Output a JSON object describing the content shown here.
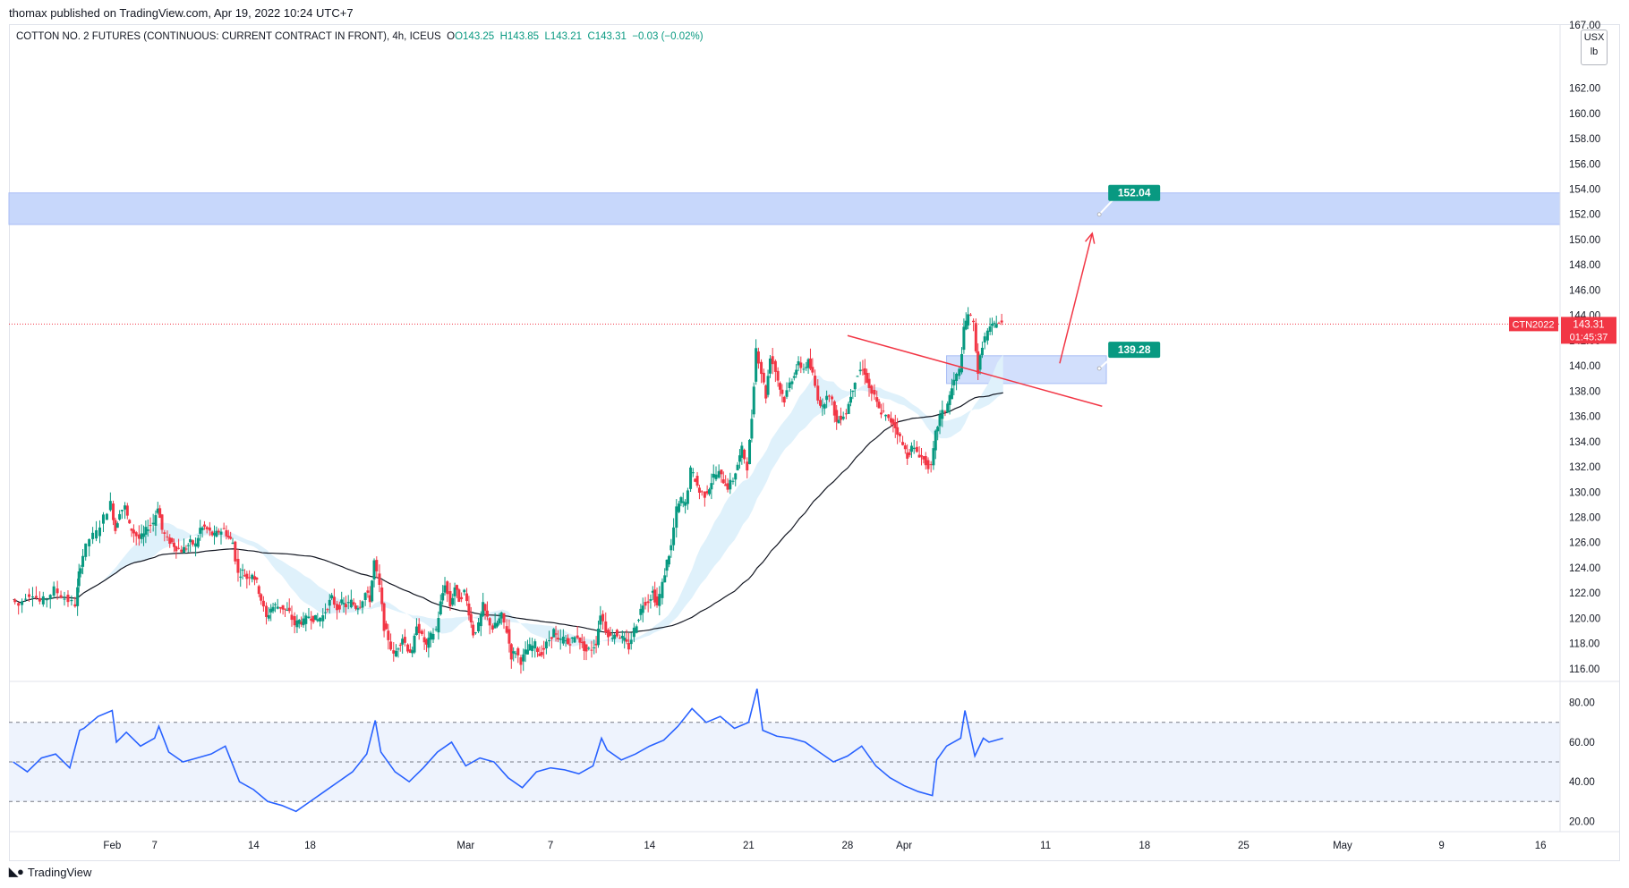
{
  "published_by": "thomax published on TradingView.com, Apr 19, 2022 10:24 UTC+7",
  "legend": {
    "symbol": "COTTON NO. 2 FUTURES (CONTINUOUS: CURRENT CONTRACT IN FRONT), 4h, ICEUS",
    "open": "O143.25",
    "high": "H143.85",
    "low": "L143.21",
    "close": "C143.31",
    "change": "−0.03 (−0.02%)"
  },
  "unit_box": {
    "currency": "USX",
    "unit": "lb"
  },
  "brand": "TradingView",
  "colors": {
    "up": "#089981",
    "down": "#f23645",
    "trendline": "#f23645",
    "zone_fill": "#c7d7fb",
    "ribbon": "#dff1fb",
    "ma": "#131722",
    "rsi_line": "#2962ff",
    "rsi_band": "#eef3fd",
    "price_label": "#f23645",
    "target_label": "#089981"
  },
  "chart_data": [
    {
      "type": "candlestick",
      "interval": "4h",
      "ylim": [
        115,
        167
      ],
      "y_ticks": [
        "116.00",
        "118.00",
        "120.00",
        "122.00",
        "124.00",
        "126.00",
        "128.00",
        "130.00",
        "132.00",
        "134.00",
        "136.00",
        "138.00",
        "140.00",
        "142.00",
        "144.00",
        "146.00",
        "148.00",
        "150.00",
        "152.00",
        "154.00",
        "156.00",
        "158.00",
        "160.00",
        "162.00",
        "167.00"
      ],
      "x_ticks": [
        {
          "label": "Feb",
          "day": 4
        },
        {
          "label": "7",
          "day": 7
        },
        {
          "label": "14",
          "day": 14
        },
        {
          "label": "18",
          "day": 18
        },
        {
          "label": "Mar",
          "day": 29
        },
        {
          "label": "7",
          "day": 35
        },
        {
          "label": "14",
          "day": 42
        },
        {
          "label": "21",
          "day": 49
        },
        {
          "label": "28",
          "day": 56
        },
        {
          "label": "Apr",
          "day": 60
        },
        {
          "label": "11",
          "day": 70
        },
        {
          "label": "18",
          "day": 77
        },
        {
          "label": "25",
          "day": 84
        },
        {
          "label": "May",
          "day": 91
        },
        {
          "label": "9",
          "day": 98
        },
        {
          "label": "16",
          "day": 105
        }
      ],
      "closes": [
        [
          -3,
          121.5
        ],
        [
          -2.5,
          121.0
        ],
        [
          -2,
          121.8
        ],
        [
          -1.5,
          122.0
        ],
        [
          -1,
          121.3
        ],
        [
          -0.5,
          121.6
        ],
        [
          0,
          122.3
        ],
        [
          0.5,
          121.8
        ],
        [
          1,
          121.4
        ],
        [
          1.5,
          121.1
        ],
        [
          1.7,
          123.5
        ],
        [
          2,
          125.0
        ],
        [
          2.5,
          126.3
        ],
        [
          3,
          126.8
        ],
        [
          3.5,
          128.0
        ],
        [
          4,
          129.1
        ],
        [
          4.3,
          127.0
        ],
        [
          4.6,
          128.5
        ],
        [
          5,
          128.8
        ],
        [
          5.3,
          127.3
        ],
        [
          5.6,
          126.8
        ],
        [
          6,
          126.3
        ],
        [
          6.3,
          126.6
        ],
        [
          6.6,
          127.3
        ],
        [
          7,
          127.6
        ],
        [
          7.3,
          128.9
        ],
        [
          7.6,
          127.0
        ],
        [
          8,
          126.2
        ],
        [
          8.3,
          126.0
        ],
        [
          8.6,
          125.6
        ],
        [
          9,
          125.4
        ],
        [
          9.3,
          125.6
        ],
        [
          9.6,
          126.0
        ],
        [
          10,
          125.8
        ],
        [
          10.3,
          127.1
        ],
        [
          10.6,
          127.2
        ],
        [
          11,
          126.8
        ],
        [
          11.3,
          126.5
        ],
        [
          11.6,
          126.9
        ],
        [
          12,
          127.0
        ],
        [
          12.3,
          126.4
        ],
        [
          12.6,
          126.0
        ],
        [
          13,
          123.5
        ],
        [
          13.3,
          123.7
        ],
        [
          13.6,
          123.2
        ],
        [
          14,
          123.6
        ],
        [
          14.3,
          122.8
        ],
        [
          14.6,
          121.5
        ],
        [
          15,
          120.0
        ],
        [
          15.3,
          120.8
        ],
        [
          15.6,
          121.0
        ],
        [
          16,
          120.9
        ],
        [
          16.3,
          120.7
        ],
        [
          16.6,
          120.4
        ],
        [
          17,
          119.5
        ],
        [
          17.3,
          119.8
        ],
        [
          17.6,
          119.7
        ],
        [
          18,
          120.2
        ],
        [
          18.3,
          120.0
        ],
        [
          18.6,
          119.9
        ],
        [
          19,
          120.2
        ],
        [
          19.3,
          121.0
        ],
        [
          19.6,
          121.6
        ],
        [
          20,
          120.8
        ],
        [
          20.3,
          121.2
        ],
        [
          20.6,
          121.0
        ],
        [
          21,
          121.3
        ],
        [
          21.3,
          120.9
        ],
        [
          21.6,
          121.1
        ],
        [
          22,
          122.0
        ],
        [
          22.3,
          121.5
        ],
        [
          22.6,
          124.5
        ],
        [
          23,
          122.5
        ],
        [
          23.3,
          119.3
        ],
        [
          23.6,
          118.4
        ],
        [
          24,
          117.0
        ],
        [
          24.3,
          117.8
        ],
        [
          24.6,
          118.5
        ],
        [
          25,
          117.6
        ],
        [
          25.3,
          117.2
        ],
        [
          25.6,
          119.6
        ],
        [
          26,
          118.5
        ],
        [
          26.3,
          117.8
        ],
        [
          26.6,
          118.6
        ],
        [
          27,
          119.1
        ],
        [
          27.3,
          121.2
        ],
        [
          27.6,
          122.8
        ],
        [
          28,
          121.0
        ],
        [
          28.3,
          122.5
        ],
        [
          28.6,
          121.5
        ],
        [
          29,
          122.1
        ],
        [
          29.3,
          120.5
        ],
        [
          29.6,
          118.8
        ],
        [
          30,
          119.4
        ],
        [
          30.3,
          121.0
        ],
        [
          30.6,
          120.0
        ],
        [
          31,
          119.2
        ],
        [
          31.3,
          119.6
        ],
        [
          31.6,
          120.2
        ],
        [
          32,
          119.0
        ],
        [
          32.3,
          117.0
        ],
        [
          32.6,
          117.4
        ],
        [
          33,
          116.6
        ],
        [
          33.3,
          117.3
        ],
        [
          33.6,
          117.7
        ],
        [
          34,
          117.9
        ],
        [
          34.3,
          117.1
        ],
        [
          34.6,
          117.6
        ],
        [
          35,
          118.3
        ],
        [
          35.3,
          119.0
        ],
        [
          35.6,
          118.1
        ],
        [
          36,
          118.4
        ],
        [
          36.3,
          118.0
        ],
        [
          36.6,
          118.3
        ],
        [
          37,
          118.6
        ],
        [
          37.3,
          117.9
        ],
        [
          37.6,
          117.4
        ],
        [
          38,
          117.6
        ],
        [
          38.3,
          118.1
        ],
        [
          38.6,
          120.4
        ],
        [
          39,
          119.1
        ],
        [
          39.3,
          118.5
        ],
        [
          39.6,
          118.8
        ],
        [
          40,
          118.6
        ],
        [
          40.3,
          118.2
        ],
        [
          40.6,
          117.7
        ],
        [
          41,
          119.1
        ],
        [
          41.3,
          120.1
        ],
        [
          41.6,
          121.2
        ],
        [
          42,
          121.4
        ],
        [
          42.3,
          122.1
        ],
        [
          42.6,
          121.0
        ],
        [
          43,
          122.7
        ],
        [
          43.3,
          124.5
        ],
        [
          43.6,
          125.7
        ],
        [
          44,
          128.6
        ],
        [
          44.3,
          129.4
        ],
        [
          44.6,
          129.0
        ],
        [
          45,
          131.7
        ],
        [
          45.3,
          131.0
        ],
        [
          45.6,
          130.0
        ],
        [
          46,
          129.8
        ],
        [
          46.3,
          130.4
        ],
        [
          46.6,
          131.3
        ],
        [
          47,
          131.5
        ],
        [
          47.3,
          130.9
        ],
        [
          47.6,
          130.4
        ],
        [
          48,
          131.0
        ],
        [
          48.3,
          132.2
        ],
        [
          48.6,
          133.4
        ],
        [
          49,
          132.0
        ],
        [
          49.3,
          135.9
        ],
        [
          49.6,
          141.4
        ],
        [
          50,
          139.5
        ],
        [
          50.3,
          137.6
        ],
        [
          50.6,
          140.8
        ],
        [
          51,
          139.6
        ],
        [
          51.3,
          138.2
        ],
        [
          51.6,
          137.3
        ],
        [
          52,
          138.6
        ],
        [
          52.3,
          139.4
        ],
        [
          52.6,
          140.1
        ],
        [
          53,
          139.8
        ],
        [
          53.3,
          140.3
        ],
        [
          53.6,
          139.3
        ],
        [
          54,
          137.5
        ],
        [
          54.3,
          136.6
        ],
        [
          54.6,
          137.9
        ],
        [
          55,
          137.1
        ],
        [
          55.3,
          135.5
        ],
        [
          55.6,
          136.0
        ],
        [
          56,
          136.3
        ],
        [
          56.3,
          137.7
        ],
        [
          56.6,
          138.9
        ],
        [
          57,
          139.7
        ],
        [
          57.3,
          139.5
        ],
        [
          57.6,
          138.2
        ],
        [
          58,
          137.5
        ],
        [
          58.3,
          136.5
        ],
        [
          58.6,
          136.2
        ],
        [
          59,
          135.7
        ],
        [
          59.3,
          135.5
        ],
        [
          59.6,
          134.8
        ],
        [
          60,
          133.7
        ],
        [
          60.3,
          132.9
        ],
        [
          60.6,
          133.5
        ],
        [
          61,
          133.2
        ],
        [
          61.3,
          132.8
        ],
        [
          61.6,
          132.3
        ],
        [
          62,
          131.9
        ],
        [
          62.3,
          134.6
        ],
        [
          62.6,
          136.0
        ],
        [
          63,
          136.5
        ],
        [
          63.3,
          137.6
        ],
        [
          63.6,
          138.8
        ],
        [
          64,
          139.6
        ],
        [
          64.3,
          142.8
        ],
        [
          64.6,
          144.2
        ],
        [
          65,
          143.3
        ],
        [
          65.3,
          139.5
        ],
        [
          65.6,
          141.7
        ],
        [
          66,
          142.7
        ],
        [
          66.3,
          143.1
        ],
        [
          66.6,
          143.5
        ],
        [
          67,
          143.31
        ]
      ],
      "last_price": {
        "symbol": "CTN2022",
        "price": "143.31",
        "countdown": "01:45:37"
      },
      "support_zone": {
        "low": 138.6,
        "high": 140.8,
        "label": "139.28"
      },
      "target_zone": {
        "low": 151.2,
        "high": 153.7,
        "label": "152.04"
      },
      "trendline": {
        "from": {
          "day": 56,
          "price": 142.4
        },
        "to": {
          "day": 74,
          "price": 136.8
        }
      },
      "projection_arrow": {
        "from": {
          "day": 71,
          "price": 140.2
        },
        "to": {
          "day": 73.3,
          "price": 150.5
        }
      }
    },
    {
      "type": "line",
      "name": "RSI",
      "ylim": [
        17,
        88
      ],
      "y_ticks": [
        "20.00",
        "40.00",
        "60.00",
        "80.00"
      ],
      "bands": {
        "upper": 70,
        "middle": 50,
        "lower": 30
      },
      "values": [
        [
          -3,
          50
        ],
        [
          -2,
          45
        ],
        [
          -1,
          52
        ],
        [
          0,
          54
        ],
        [
          1,
          47
        ],
        [
          1.7,
          66
        ],
        [
          2,
          67
        ],
        [
          3,
          73
        ],
        [
          4,
          76
        ],
        [
          4.3,
          60
        ],
        [
          5,
          65
        ],
        [
          6,
          58
        ],
        [
          7,
          62
        ],
        [
          7.3,
          68
        ],
        [
          8,
          55
        ],
        [
          9,
          50
        ],
        [
          10,
          52
        ],
        [
          11,
          54
        ],
        [
          12,
          58
        ],
        [
          13,
          40
        ],
        [
          14,
          36
        ],
        [
          15,
          30
        ],
        [
          16,
          28
        ],
        [
          17,
          25
        ],
        [
          18,
          30
        ],
        [
          19,
          35
        ],
        [
          20,
          40
        ],
        [
          21,
          45
        ],
        [
          22,
          54
        ],
        [
          22.6,
          71
        ],
        [
          23,
          55
        ],
        [
          24,
          45
        ],
        [
          25,
          40
        ],
        [
          26,
          47
        ],
        [
          27,
          55
        ],
        [
          28,
          60
        ],
        [
          29,
          48
        ],
        [
          30,
          52
        ],
        [
          31,
          50
        ],
        [
          32,
          42
        ],
        [
          33,
          37
        ],
        [
          34,
          45
        ],
        [
          35,
          47
        ],
        [
          36,
          46
        ],
        [
          37,
          44
        ],
        [
          38,
          48
        ],
        [
          38.6,
          62
        ],
        [
          39,
          56
        ],
        [
          40,
          51
        ],
        [
          41,
          54
        ],
        [
          42,
          58
        ],
        [
          43,
          61
        ],
        [
          44,
          68
        ],
        [
          45,
          77
        ],
        [
          46,
          70
        ],
        [
          47,
          73
        ],
        [
          48,
          67
        ],
        [
          49,
          70
        ],
        [
          49.6,
          87
        ],
        [
          50,
          66
        ],
        [
          51,
          63
        ],
        [
          52,
          62
        ],
        [
          53,
          60
        ],
        [
          54,
          55
        ],
        [
          55,
          50
        ],
        [
          56,
          53
        ],
        [
          57,
          58
        ],
        [
          58,
          48
        ],
        [
          59,
          42
        ],
        [
          60,
          38
        ],
        [
          61,
          35
        ],
        [
          62,
          33
        ],
        [
          62.3,
          51
        ],
        [
          63,
          58
        ],
        [
          64,
          62
        ],
        [
          64.3,
          76
        ],
        [
          65,
          53
        ],
        [
          65.6,
          62
        ],
        [
          66,
          60
        ],
        [
          67,
          62
        ]
      ]
    }
  ]
}
